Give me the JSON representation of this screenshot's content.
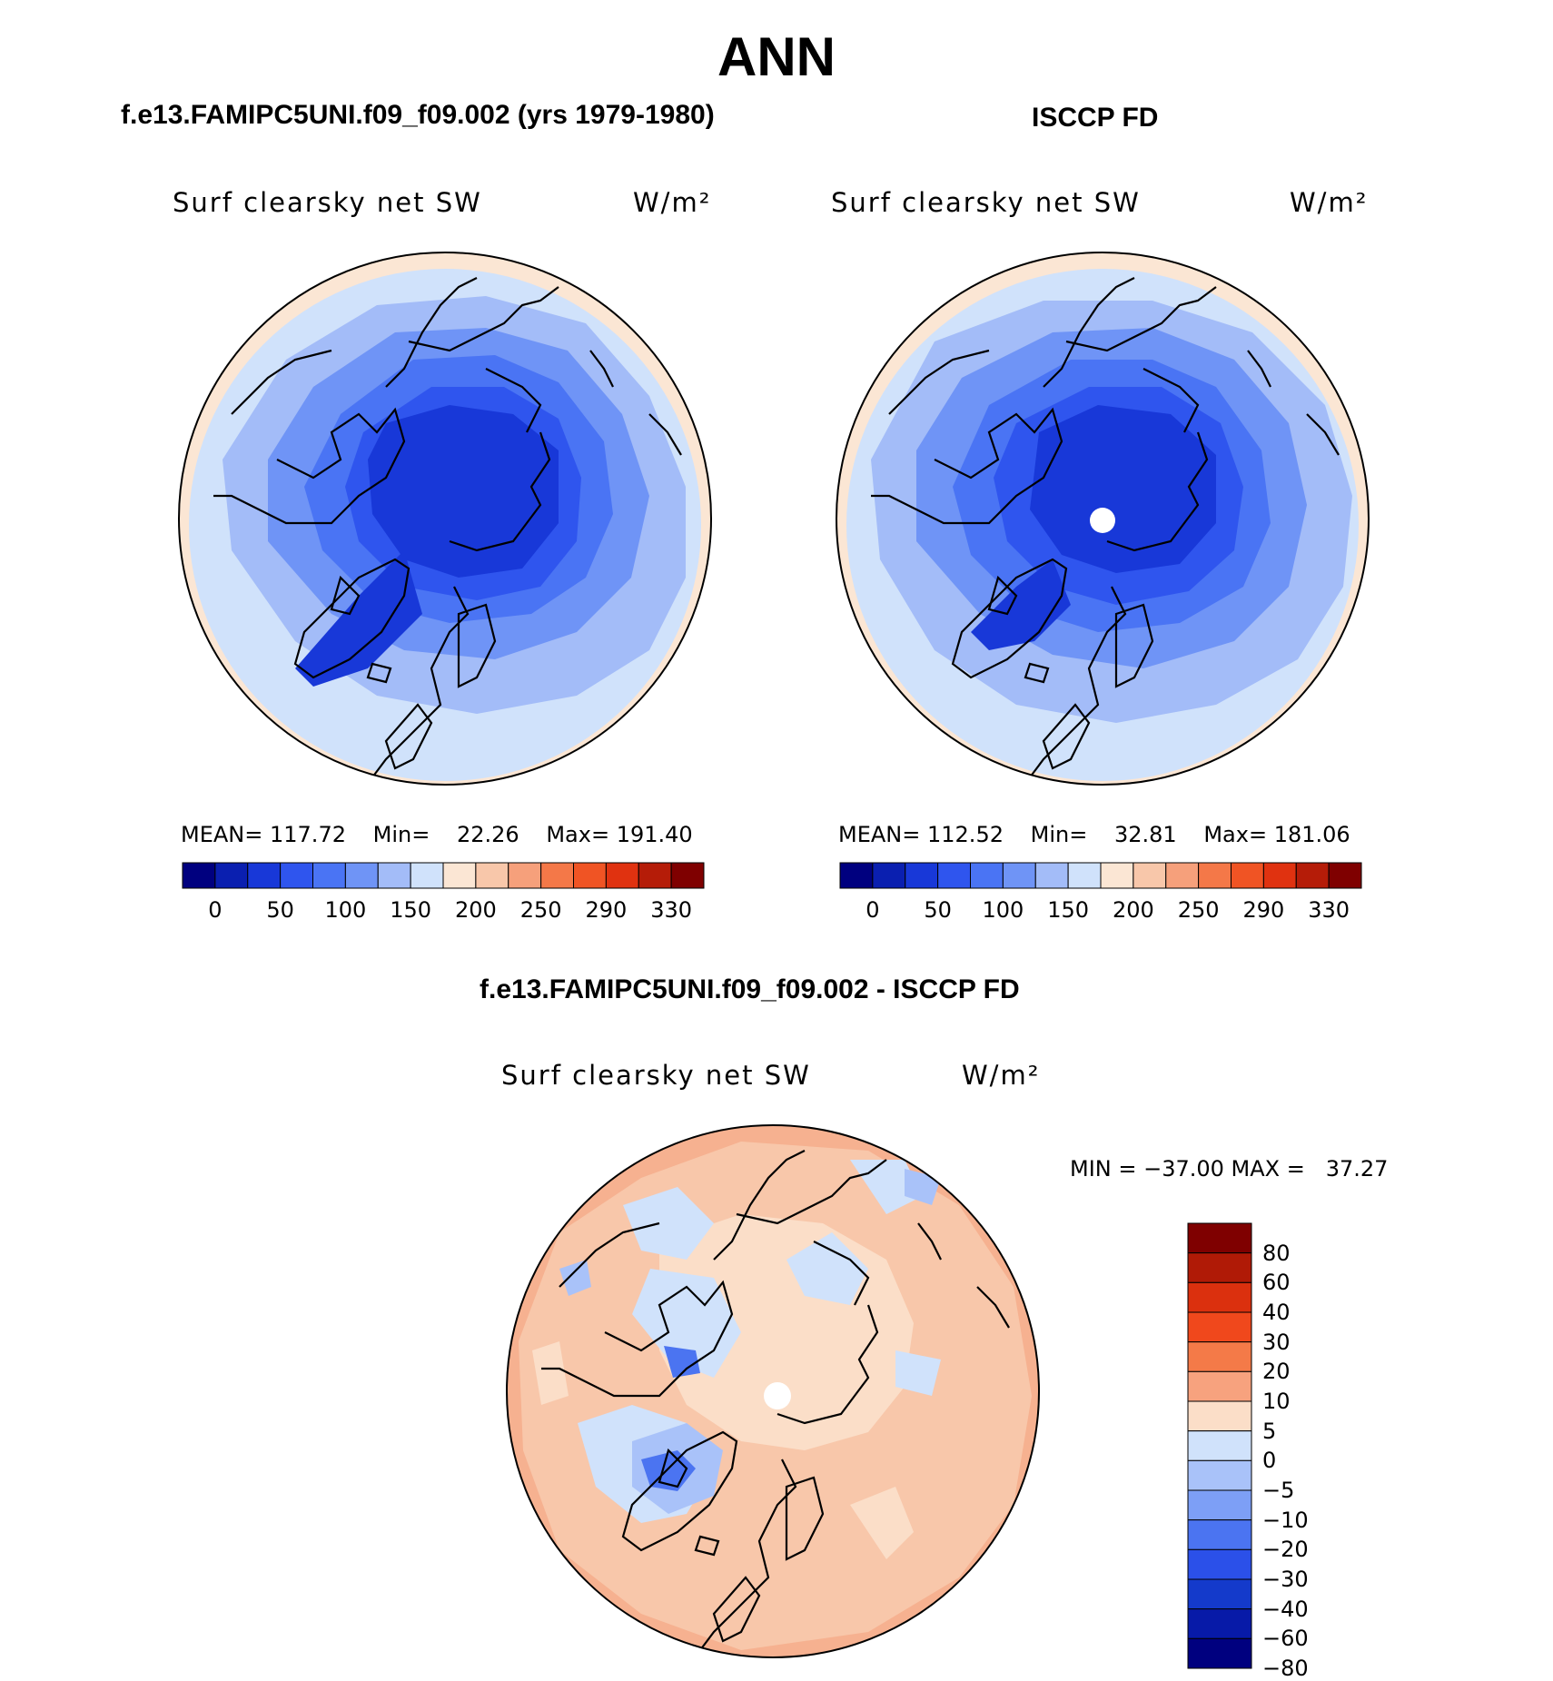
{
  "main_title": "ANN",
  "panels": [
    {
      "title": "f.e13.FAMIPC5UNI.f09_f09.002 (yrs 1979-1980)",
      "variable": "Surf clearsky net SW",
      "units": "W/m²",
      "stats": {
        "mean_label": "MEAN=",
        "mean": "117.72",
        "min_label": "Min=",
        "min": "22.26",
        "max_label": "Max=",
        "max": "191.40"
      }
    },
    {
      "title": "ISCCP FD",
      "variable": "Surf clearsky net SW",
      "units": "W/m²",
      "stats": {
        "mean_label": "MEAN=",
        "mean": "112.52",
        "min_label": "Min=",
        "min": "32.81",
        "max_label": "Max=",
        "max": "181.06"
      }
    }
  ],
  "diff_panel": {
    "title": "f.e13.FAMIPC5UNI.f09_f09.002 - ISCCP FD",
    "variable": "Surf clearsky net SW",
    "units": "W/m²",
    "minmax": "MIN = −37.00 MAX =   37.27"
  },
  "colorbar_horizontal": {
    "colors": [
      "#00007f",
      "#0a1fb0",
      "#1838d8",
      "#2f55ee",
      "#4a74f4",
      "#6f94f6",
      "#a3bcf8",
      "#d0e2fb",
      "#fbe6d4",
      "#f8c7aa",
      "#f6a07b",
      "#f47848",
      "#f05424",
      "#e03210",
      "#b51c08",
      "#7f0000"
    ],
    "tick_labels": [
      "0",
      "50",
      "100",
      "150",
      "200",
      "250",
      "290",
      "330"
    ]
  },
  "colorbar_vertical": {
    "colors_top_to_bottom": [
      "#7f0000",
      "#b01a06",
      "#db300e",
      "#f0481c",
      "#f47a48",
      "#f7a27e",
      "#fbdec8",
      "#d0e2fb",
      "#a9c2f9",
      "#7d9ff6",
      "#4b74f1",
      "#2b50e9",
      "#143acb",
      "#071aa8",
      "#00007f"
    ],
    "tick_labels": [
      "80",
      "60",
      "40",
      "30",
      "20",
      "10",
      "5",
      "0",
      "−5",
      "−10",
      "−20",
      "−30",
      "−40",
      "−60",
      "−80"
    ]
  },
  "map_fill": {
    "panel1": [
      "#fbe6d4",
      "#d0e2fb",
      "#a3bcf8",
      "#6f94f6",
      "#4a74f4",
      "#2f55ee",
      "#1838d8"
    ],
    "panel2": [
      "#fbe6d4",
      "#d0e2fb",
      "#a3bcf8",
      "#6f94f6",
      "#4a74f4",
      "#2f55ee",
      "#1838d8"
    ],
    "diff": [
      "#f6b190",
      "#f8c7aa",
      "#fbdec8",
      "#d0e2fb",
      "#a9c2f9",
      "#4b74f1"
    ]
  }
}
